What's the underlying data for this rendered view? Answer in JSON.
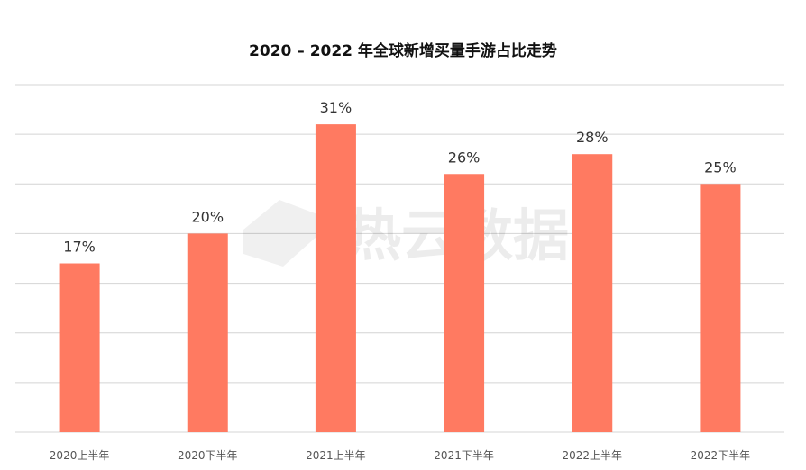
{
  "chart_data": {
    "type": "bar",
    "title": "2020 – 2022 年全球新增买量手游占比走势",
    "categories": [
      "2020上半年",
      "2020下半年",
      "2021上半年",
      "2021下半年",
      "2022上半年",
      "2022下半年"
    ],
    "values": [
      17,
      20,
      31,
      26,
      28,
      25
    ],
    "value_labels": [
      "17%",
      "20%",
      "31%",
      "26%",
      "28%",
      "25%"
    ],
    "ylim": [
      0,
      35
    ],
    "grid": true,
    "bar_color": "#ff7a61"
  },
  "watermark": "热云数据"
}
